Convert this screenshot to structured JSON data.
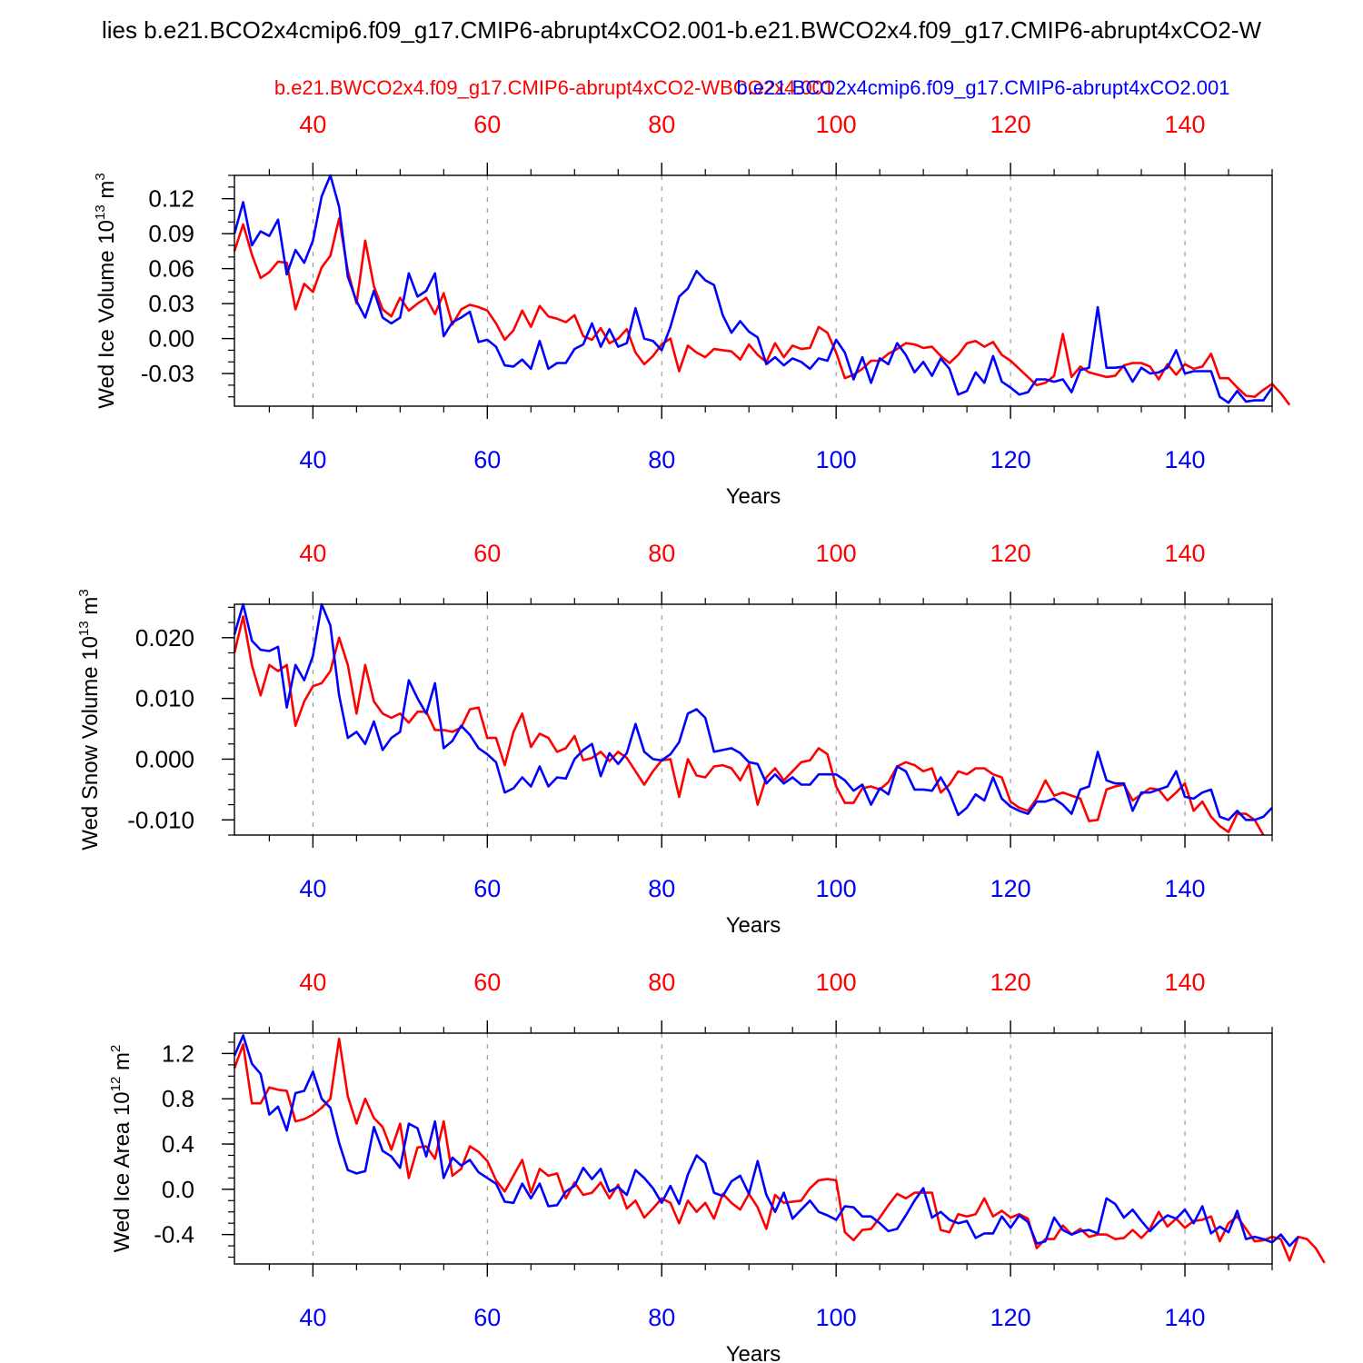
{
  "figure": {
    "title": "lies b.e21.BCO2x4cmip6.f09_g17.CMIP6-abrupt4xCO2.001-b.e21.BWCO2x4.f09_g17.CMIP6-abrupt4xCO2-W",
    "legend_red": "b.e21.BWCO2x4.f09_g17.CMIP6-abrupt4xCO2-WBCO2x4.001",
    "legend_blue": "b.e21.BCO2x4cmip6.f09_g17.CMIP6-abrupt4xCO2.001",
    "colors": {
      "red": "#ff0000",
      "blue": "#0000ff",
      "grid": "#888888",
      "axis": "#000000"
    }
  },
  "chart_data": [
    {
      "type": "line",
      "id": "ice-volume",
      "ylabel": "Wed Ice Volume 10^13 m^3",
      "ylabel_main": "Wed Ice Volume 10",
      "ylabel_exp1": "13",
      "ylabel_mid": " m",
      "ylabel_exp2": "3",
      "xlabel": "Years",
      "xlim": [
        31,
        150
      ],
      "ylim": [
        -0.058,
        0.14
      ],
      "xticks": [
        40,
        60,
        80,
        100,
        120,
        140
      ],
      "xtick_labels": [
        "40",
        "60",
        "80",
        "100",
        "120",
        "140"
      ],
      "yticks": [
        0.12,
        0.09,
        0.06,
        0.03,
        0.0,
        -0.03
      ],
      "ytick_labels": [
        "0.12",
        "0.09",
        "0.06",
        "0.03",
        "0.00",
        "-0.03"
      ],
      "yminor_step": 0.01,
      "x_start": 31,
      "series": [
        {
          "name": "b.e21.BWCO2x4.f09_g17.CMIP6-abrupt4xCO2-WBCO2x4.001",
          "color": "#ff0000",
          "values": [
            0.075,
            0.098,
            0.072,
            0.052,
            0.057,
            0.066,
            0.065,
            0.025,
            0.047,
            0.04,
            0.061,
            0.071,
            0.103,
            0.058,
            0.03,
            0.084,
            0.045,
            0.025,
            0.019,
            0.035,
            0.024,
            0.03,
            0.035,
            0.021,
            0.039,
            0.012,
            0.025,
            0.029,
            0.027,
            0.024,
            0.013,
            -0.001,
            0.007,
            0.024,
            0.01,
            0.028,
            0.019,
            0.017,
            0.014,
            0.02,
            0.002,
            -0.001,
            0.009,
            -0.004,
            0.0,
            0.008,
            -0.012,
            -0.022,
            -0.015,
            -0.005,
            0.0,
            -0.028,
            -0.006,
            -0.012,
            -0.016,
            -0.009,
            -0.01,
            -0.011,
            -0.018,
            -0.005,
            -0.014,
            -0.02,
            -0.004,
            -0.016,
            -0.006,
            -0.009,
            -0.008,
            0.01,
            0.005,
            -0.012,
            -0.034,
            -0.031,
            -0.026,
            -0.019,
            -0.019,
            -0.013,
            -0.009,
            -0.004,
            -0.005,
            -0.008,
            -0.007,
            -0.015,
            -0.021,
            -0.014,
            -0.004,
            -0.002,
            -0.007,
            -0.003,
            -0.014,
            -0.019,
            -0.026,
            -0.033,
            -0.04,
            -0.038,
            -0.032,
            0.004,
            -0.033,
            -0.024,
            -0.029,
            -0.031,
            -0.033,
            -0.032,
            -0.023,
            -0.021,
            -0.021,
            -0.024,
            -0.035,
            -0.022,
            -0.031,
            -0.022,
            -0.026,
            -0.024,
            -0.013,
            -0.034,
            -0.034,
            -0.042,
            -0.049,
            -0.05,
            -0.044,
            -0.039,
            -0.047,
            -0.057
          ]
        },
        {
          "name": "b.e21.BCO2x4cmip6.f09_g17.CMIP6-abrupt4xCO2.001",
          "color": "#0000ff",
          "values": [
            0.09,
            0.117,
            0.08,
            0.092,
            0.088,
            0.102,
            0.055,
            0.076,
            0.065,
            0.084,
            0.122,
            0.14,
            0.113,
            0.053,
            0.032,
            0.018,
            0.041,
            0.018,
            0.013,
            0.018,
            0.056,
            0.036,
            0.041,
            0.056,
            0.002,
            0.014,
            0.018,
            0.023,
            -0.003,
            -0.001,
            -0.007,
            -0.023,
            -0.024,
            -0.018,
            -0.026,
            -0.002,
            -0.026,
            -0.021,
            -0.021,
            -0.009,
            -0.005,
            0.013,
            -0.007,
            0.008,
            -0.007,
            -0.004,
            0.026,
            0.0,
            -0.002,
            -0.01,
            0.01,
            0.036,
            0.043,
            0.058,
            0.05,
            0.046,
            0.02,
            0.005,
            0.015,
            0.006,
            0.001,
            -0.022,
            -0.016,
            -0.023,
            -0.017,
            -0.02,
            -0.026,
            -0.017,
            -0.019,
            -0.001,
            -0.012,
            -0.035,
            -0.016,
            -0.038,
            -0.017,
            -0.022,
            -0.004,
            -0.014,
            -0.029,
            -0.02,
            -0.032,
            -0.017,
            -0.026,
            -0.048,
            -0.045,
            -0.029,
            -0.038,
            -0.015,
            -0.037,
            -0.042,
            -0.048,
            -0.046,
            -0.035,
            -0.035,
            -0.037,
            -0.035,
            -0.046,
            -0.027,
            -0.025,
            0.027,
            -0.025,
            -0.025,
            -0.024,
            -0.037,
            -0.025,
            -0.03,
            -0.029,
            -0.025,
            -0.01,
            -0.03,
            -0.028,
            -0.028,
            -0.028,
            -0.05,
            -0.055,
            -0.045,
            -0.054,
            -0.053,
            -0.053,
            -0.042
          ]
        }
      ]
    },
    {
      "type": "line",
      "id": "snow-volume",
      "ylabel": "Wed Snow Volume 10^13 m^3",
      "ylabel_main": "Wed Snow Volume 10",
      "ylabel_exp1": "13",
      "ylabel_mid": " m",
      "ylabel_exp2": "3",
      "xlabel": "Years",
      "xlim": [
        31,
        150
      ],
      "ylim": [
        -0.0125,
        0.0255
      ],
      "xticks": [
        40,
        60,
        80,
        100,
        120,
        140
      ],
      "xtick_labels": [
        "40",
        "60",
        "80",
        "100",
        "120",
        "140"
      ],
      "yticks": [
        0.02,
        0.01,
        0.0,
        -0.01
      ],
      "ytick_labels": [
        "0.020",
        "0.010",
        "0.000",
        "-0.010"
      ],
      "yminor_step": 0.0025,
      "x_start": 31,
      "series": [
        {
          "name": "b.e21.BWCO2x4.f09_g17.CMIP6-abrupt4xCO2-WBCO2x4.001",
          "color": "#ff0000",
          "values": [
            0.0175,
            0.0235,
            0.0155,
            0.0105,
            0.0155,
            0.0145,
            0.0155,
            0.0055,
            0.0095,
            0.012,
            0.0125,
            0.0145,
            0.02,
            0.0155,
            0.0075,
            0.0155,
            0.0095,
            0.0075,
            0.0068,
            0.0075,
            0.006,
            0.0078,
            0.0078,
            0.0048,
            0.0048,
            0.0045,
            0.0052,
            0.0082,
            0.0085,
            0.0035,
            0.0035,
            -0.001,
            0.0045,
            0.0075,
            0.002,
            0.0042,
            0.0035,
            0.0012,
            0.0018,
            0.0038,
            -0.0002,
            0.0002,
            0.0012,
            -0.0003,
            0.0012,
            0.0002,
            -0.002,
            -0.0042,
            -0.002,
            -0.0002,
            0.0,
            -0.0062,
            0.0,
            -0.0027,
            -0.003,
            -0.0012,
            -0.001,
            -0.0015,
            -0.0035,
            -0.0008,
            -0.0075,
            -0.003,
            -0.0015,
            -0.0035,
            -0.002,
            -0.0005,
            -0.0002,
            0.0018,
            0.0008,
            -0.0045,
            -0.0072,
            -0.0072,
            -0.0048,
            -0.0045,
            -0.005,
            -0.0038,
            -0.0012,
            -0.0005,
            -0.001,
            -0.002,
            -0.0015,
            -0.0055,
            -0.0042,
            -0.002,
            -0.0025,
            -0.0015,
            -0.0015,
            -0.0025,
            -0.003,
            -0.007,
            -0.008,
            -0.0085,
            -0.0065,
            -0.0035,
            -0.006,
            -0.0055,
            -0.006,
            -0.0065,
            -0.0102,
            -0.01,
            -0.005,
            -0.0045,
            -0.0042,
            -0.0068,
            -0.0058,
            -0.0048,
            -0.005,
            -0.0068,
            -0.0055,
            -0.004,
            -0.0085,
            -0.007,
            -0.0095,
            -0.011,
            -0.012,
            -0.009,
            -0.009,
            -0.01,
            -0.0125
          ]
        },
        {
          "name": "b.e21.BCO2x4cmip6.f09_g17.CMIP6-abrupt4xCO2.001",
          "color": "#0000ff",
          "values": [
            0.0205,
            0.0255,
            0.0195,
            0.018,
            0.0178,
            0.0185,
            0.0085,
            0.0155,
            0.013,
            0.017,
            0.0255,
            0.022,
            0.0105,
            0.0035,
            0.0045,
            0.0025,
            0.0062,
            0.0015,
            0.0035,
            0.0045,
            0.013,
            0.01,
            0.0075,
            0.0125,
            0.0018,
            0.003,
            0.0055,
            0.004,
            0.0018,
            0.0008,
            -0.0005,
            -0.0055,
            -0.0048,
            -0.003,
            -0.0045,
            -0.0012,
            -0.0045,
            -0.003,
            -0.0032,
            0.0,
            0.0015,
            0.0025,
            -0.0028,
            0.001,
            -0.0008,
            0.001,
            0.0058,
            0.0012,
            0.0,
            -0.0002,
            0.0008,
            0.0028,
            0.0075,
            0.0082,
            0.0068,
            0.0012,
            0.0015,
            0.0018,
            0.001,
            -0.0005,
            -0.0008,
            -0.004,
            -0.0025,
            -0.004,
            -0.003,
            -0.0042,
            -0.0042,
            -0.0025,
            -0.0025,
            -0.0025,
            -0.0035,
            -0.0052,
            -0.0042,
            -0.0075,
            -0.0048,
            -0.0058,
            -0.0012,
            -0.002,
            -0.005,
            -0.005,
            -0.0052,
            -0.003,
            -0.0055,
            -0.0092,
            -0.008,
            -0.0058,
            -0.0068,
            -0.003,
            -0.0065,
            -0.0078,
            -0.0085,
            -0.009,
            -0.007,
            -0.007,
            -0.0065,
            -0.0075,
            -0.009,
            -0.005,
            -0.0045,
            0.0012,
            -0.0035,
            -0.004,
            -0.004,
            -0.0085,
            -0.0055,
            -0.0055,
            -0.005,
            -0.0045,
            -0.002,
            -0.0062,
            -0.0065,
            -0.0055,
            -0.005,
            -0.0095,
            -0.01,
            -0.0085,
            -0.01,
            -0.01,
            -0.0095,
            -0.008
          ]
        }
      ]
    },
    {
      "type": "line",
      "id": "ice-area",
      "ylabel": "Wed Ice Area 10^12 m^2",
      "ylabel_main": "Wed Ice Area 10",
      "ylabel_exp1": "12",
      "ylabel_mid": " m",
      "ylabel_exp2": "2",
      "xlabel": "Years",
      "xlim": [
        31,
        150
      ],
      "ylim": [
        -0.66,
        1.38
      ],
      "xticks": [
        40,
        60,
        80,
        100,
        120,
        140
      ],
      "xtick_labels": [
        "40",
        "60",
        "80",
        "100",
        "120",
        "140"
      ],
      "yticks": [
        1.2,
        0.8,
        0.4,
        0.0,
        -0.4
      ],
      "ytick_labels": [
        "1.2",
        "0.8",
        "0.4",
        "0.0",
        "-0.4"
      ],
      "yminor_step": 0.1,
      "x_start": 31,
      "series": [
        {
          "name": "b.e21.BWCO2x4.f09_g17.CMIP6-abrupt4xCO2-WBCO2x4.001",
          "color": "#ff0000",
          "values": [
            1.07,
            1.28,
            0.76,
            0.76,
            0.9,
            0.88,
            0.87,
            0.6,
            0.62,
            0.66,
            0.72,
            0.8,
            1.33,
            0.82,
            0.58,
            0.8,
            0.63,
            0.55,
            0.35,
            0.58,
            0.1,
            0.37,
            0.38,
            0.27,
            0.6,
            0.12,
            0.18,
            0.38,
            0.33,
            0.25,
            0.08,
            -0.02,
            0.12,
            0.26,
            -0.03,
            0.18,
            0.12,
            0.14,
            -0.08,
            0.06,
            -0.05,
            -0.03,
            0.06,
            -0.08,
            0.04,
            -0.17,
            -0.1,
            -0.25,
            -0.17,
            -0.08,
            -0.12,
            -0.3,
            -0.1,
            -0.2,
            -0.12,
            -0.26,
            -0.04,
            -0.12,
            -0.18,
            -0.04,
            -0.16,
            -0.35,
            -0.05,
            -0.12,
            -0.11,
            -0.1,
            0.01,
            0.08,
            0.09,
            0.08,
            -0.38,
            -0.45,
            -0.36,
            -0.35,
            -0.25,
            -0.14,
            -0.04,
            -0.08,
            -0.03,
            -0.03,
            -0.03,
            -0.36,
            -0.38,
            -0.22,
            -0.24,
            -0.22,
            -0.08,
            -0.24,
            -0.19,
            -0.25,
            -0.22,
            -0.26,
            -0.52,
            -0.44,
            -0.44,
            -0.32,
            -0.4,
            -0.35,
            -0.42,
            -0.4,
            -0.4,
            -0.44,
            -0.43,
            -0.36,
            -0.43,
            -0.35,
            -0.2,
            -0.33,
            -0.26,
            -0.34,
            -0.28,
            -0.27,
            -0.24,
            -0.46,
            -0.3,
            -0.24,
            -0.35,
            -0.46,
            -0.45,
            -0.42,
            -0.44,
            -0.63,
            -0.42,
            -0.44,
            -0.52,
            -0.65
          ]
        },
        {
          "name": "b.e21.BCO2x4cmip6.f09_g17.CMIP6-abrupt4xCO2.001",
          "color": "#0000ff",
          "values": [
            1.18,
            1.36,
            1.11,
            1.02,
            0.66,
            0.73,
            0.52,
            0.85,
            0.87,
            1.04,
            0.8,
            0.72,
            0.41,
            0.17,
            0.14,
            0.16,
            0.55,
            0.34,
            0.29,
            0.19,
            0.58,
            0.54,
            0.29,
            0.6,
            0.1,
            0.28,
            0.21,
            0.26,
            0.15,
            0.1,
            0.05,
            -0.11,
            -0.12,
            0.05,
            -0.08,
            0.05,
            -0.15,
            -0.14,
            -0.02,
            0.03,
            0.19,
            0.09,
            0.18,
            -0.02,
            0.02,
            -0.05,
            0.17,
            0.1,
            0.01,
            -0.12,
            0.03,
            -0.13,
            0.13,
            0.3,
            0.23,
            -0.03,
            -0.06,
            0.07,
            0.12,
            -0.04,
            0.25,
            -0.05,
            -0.2,
            -0.03,
            -0.26,
            -0.18,
            -0.1,
            -0.2,
            -0.23,
            -0.27,
            -0.15,
            -0.16,
            -0.24,
            -0.24,
            -0.3,
            -0.37,
            -0.35,
            -0.23,
            -0.1,
            0.01,
            -0.25,
            -0.2,
            -0.27,
            -0.3,
            -0.28,
            -0.43,
            -0.39,
            -0.39,
            -0.24,
            -0.34,
            -0.23,
            -0.29,
            -0.48,
            -0.46,
            -0.25,
            -0.36,
            -0.4,
            -0.37,
            -0.36,
            -0.39,
            -0.08,
            -0.13,
            -0.25,
            -0.18,
            -0.28,
            -0.37,
            -0.29,
            -0.23,
            -0.26,
            -0.18,
            -0.3,
            -0.15,
            -0.39,
            -0.33,
            -0.38,
            -0.19,
            -0.44,
            -0.42,
            -0.44,
            -0.47,
            -0.4,
            -0.5,
            -0.42
          ]
        }
      ]
    }
  ]
}
